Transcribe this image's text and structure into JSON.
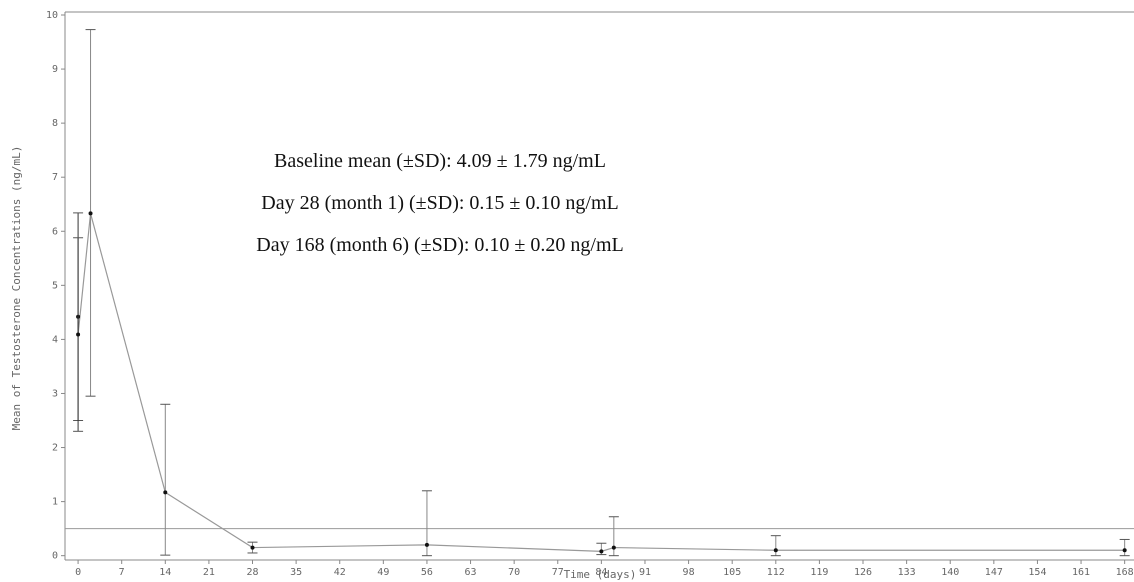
{
  "chart_data": {
    "type": "line",
    "x_label": "Time (days)",
    "y_label": "Mean of Testosterone Concentrations (ng/mL)",
    "annotations": [
      "Baseline mean (±SD): 4.09 ± 1.79 ng/mL",
      "Day 28 (month 1) (±SD): 0.15 ± 0.10 ng/mL",
      "Day 168 (month 6) (±SD): 0.10 ± 0.20 ng/mL"
    ],
    "x": [
      0,
      0,
      2,
      14,
      28,
      56,
      84,
      86,
      112,
      168
    ],
    "series": [
      {
        "color": "#999999",
        "values": [
          4.42,
          4.09,
          6.33,
          1.17,
          0.15,
          0.2,
          0.08,
          0.15,
          0.1,
          0.1
        ],
        "upper": [
          6.34,
          5.88,
          9.73,
          2.8,
          0.25,
          1.2,
          0.23,
          0.72,
          0.37,
          0.3
        ],
        "lower": [
          2.5,
          2.3,
          2.95,
          0.01,
          0.05,
          0.0,
          0.02,
          0.0,
          0.0,
          0.0
        ]
      }
    ],
    "reference_line": 0.5,
    "xlim": [
      -2.1,
      169.5
    ],
    "ylim": [
      -0.08,
      10
    ],
    "xticks": [
      0,
      7,
      14,
      21,
      28,
      35,
      42,
      49,
      56,
      63,
      70,
      77,
      84,
      91,
      98,
      105,
      112,
      119,
      126,
      133,
      140,
      147,
      154,
      161,
      168
    ],
    "yticks": [
      0,
      1,
      2,
      3,
      4,
      5,
      6,
      7,
      8,
      9,
      10
    ]
  }
}
